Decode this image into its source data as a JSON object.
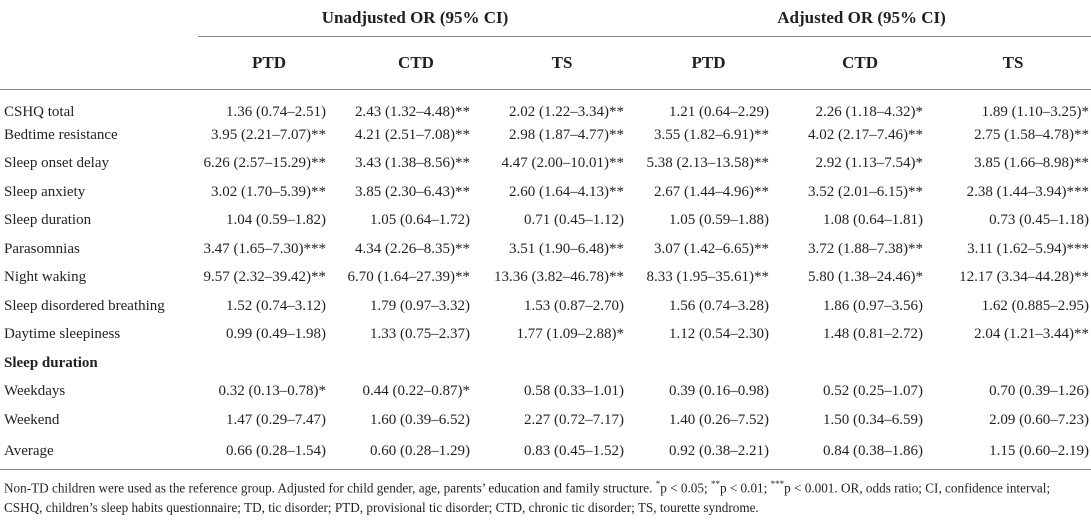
{
  "header": {
    "group1": "Unadjusted OR (95% CI)",
    "group2": "Adjusted OR (95% CI)",
    "cols": [
      "PTD",
      "CTD",
      "TS",
      "PTD",
      "CTD",
      "TS"
    ]
  },
  "rows": [
    {
      "label": "CSHQ total",
      "v": [
        "1.36 (0.74–2.51)",
        "2.43 (1.32–4.48)**",
        "2.02 (1.22–3.34)**",
        "1.21 (0.64–2.29)",
        "2.26 (1.18–4.32)*",
        "1.89 (1.10–3.25)*"
      ]
    },
    {
      "label": "Bedtime resistance",
      "v": [
        "3.95 (2.21–7.07)**",
        "4.21 (2.51–7.08)**",
        "2.98 (1.87–4.77)**",
        "3.55 (1.82–6.91)**",
        "4.02 (2.17–7.46)**",
        "2.75 (1.58–4.78)**"
      ]
    },
    {
      "label": "Sleep onset delay",
      "v": [
        "6.26 (2.57–15.29)**",
        "3.43 (1.38–8.56)**",
        "4.47 (2.00–10.01)**",
        "5.38 (2.13–13.58)**",
        "2.92 (1.13–7.54)*",
        "3.85 (1.66–8.98)**"
      ]
    },
    {
      "label": "Sleep anxiety",
      "v": [
        "3.02 (1.70–5.39)**",
        "3.85 (2.30–6.43)**",
        "2.60 (1.64–4.13)**",
        "2.67 (1.44–4.96)**",
        "3.52 (2.01–6.15)**",
        "2.38 (1.44–3.94)***"
      ]
    },
    {
      "label": "Sleep duration",
      "v": [
        "1.04 (0.59–1.82)",
        "1.05 (0.64–1.72)",
        "0.71 (0.45–1.12)",
        "1.05 (0.59–1.88)",
        "1.08 (0.64–1.81)",
        "0.73 (0.45–1.18)"
      ]
    },
    {
      "label": "Parasomnias",
      "v": [
        "3.47 (1.65–7.30)***",
        "4.34 (2.26–8.35)**",
        "3.51 (1.90–6.48)**",
        "3.07 (1.42–6.65)**",
        "3.72 (1.88–7.38)**",
        "3.11 (1.62–5.94)***"
      ]
    },
    {
      "label": "Night waking",
      "v": [
        "9.57 (2.32–39.42)**",
        "6.70 (1.64–27.39)**",
        "13.36 (3.82–46.78)**",
        "8.33 (1.95–35.61)**",
        "5.80 (1.38–24.46)*",
        "12.17 (3.34–44.28)**"
      ]
    },
    {
      "label": "Sleep disordered breathing",
      "v": [
        "1.52 (0.74–3.12)",
        "1.79 (0.97–3.32)",
        "1.53 (0.87–2.70)",
        "1.56 (0.74–3.28)",
        "1.86 (0.97–3.56)",
        "1.62 (0.885–2.95)"
      ]
    },
    {
      "label": "Daytime sleepiness",
      "v": [
        "0.99 (0.49–1.98)",
        "1.33 (0.75–2.37)",
        "1.77 (1.09–2.88)*",
        "1.12 (0.54–2.30)",
        "1.48 (0.81–2.72)",
        "2.04 (1.21–3.44)**"
      ]
    },
    {
      "label": "Sleep duration",
      "section": true,
      "v": [
        "",
        "",
        "",
        "",
        "",
        ""
      ]
    },
    {
      "label": "Weekdays",
      "v": [
        "0.32 (0.13–0.78)*",
        "0.44 (0.22–0.87)*",
        "0.58 (0.33–1.01)",
        "0.39 (0.16–0.98)",
        "0.52 (0.25–1.07)",
        "0.70 (0.39–1.26)"
      ]
    },
    {
      "label": "Weekend",
      "v": [
        "1.47 (0.29–7.47)",
        "1.60 (0.39–6.52)",
        "2.27 (0.72–7.17)",
        "1.40 (0.26–7.52)",
        "1.50 (0.34–6.59)",
        "2.09 (0.60–7.23)"
      ]
    },
    {
      "label": "Average",
      "v": [
        "0.66 (0.28–1.54)",
        "0.60 (0.28–1.29)",
        "0.83 (0.45–1.52)",
        "0.92 (0.38–2.21)",
        "0.84 (0.38–1.86)",
        "1.15 (0.60–2.19)"
      ]
    }
  ],
  "note": {
    "pre": "Non-TD children were used as the reference group. Adjusted for child gender, age, parents’ education and family structure. ",
    "s1": "*",
    "t1": "p < 0.05; ",
    "s2": "**",
    "t2": "p < 0.01; ",
    "s3": "***",
    "t3": "p < 0.001. OR, odds ratio; CI, confidence interval; CSHQ, children’s sleep habits questionnaire; TD, tic disorder; PTD, provisional tic disorder; CTD, chronic tic disorder; TS, tourette syndrome."
  }
}
